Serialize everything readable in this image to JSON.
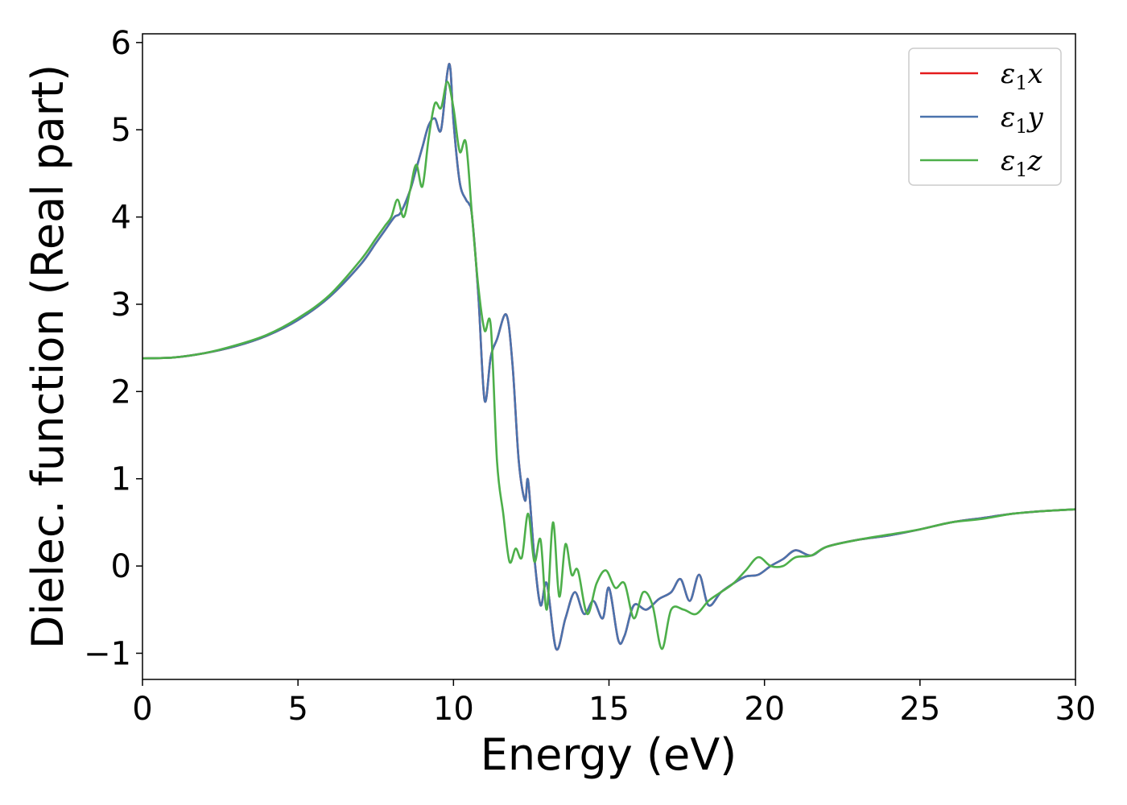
{
  "chart_data": {
    "type": "line",
    "title": "",
    "xlabel": "Energy (eV)",
    "ylabel": "Dielec. function (Real part)",
    "xlim": [
      0,
      30
    ],
    "ylim": [
      -1.3,
      6.1
    ],
    "xticks": [
      0,
      5,
      10,
      15,
      20,
      25,
      30
    ],
    "yticks": [
      -1,
      0,
      1,
      2,
      3,
      4,
      5,
      6
    ],
    "xtick_labels": [
      "0",
      "5",
      "10",
      "15",
      "20",
      "25",
      "30"
    ],
    "ytick_labels": [
      "−1",
      "0",
      "1",
      "2",
      "3",
      "4",
      "5",
      "6"
    ],
    "grid": false,
    "legend_position": "top-right",
    "series": [
      {
        "name": "x",
        "label_main": "ε",
        "label_sub": "1",
        "label_tail": "x",
        "color": "#e41a1c",
        "x": [
          0,
          1,
          2,
          3,
          4,
          5,
          6,
          7,
          7.5,
          7.8,
          8.1,
          8.3,
          8.6,
          8.8,
          9.0,
          9.2,
          9.4,
          9.6,
          9.8,
          9.9,
          10.0,
          10.2,
          10.4,
          10.5,
          10.6,
          10.8,
          11.0,
          11.2,
          11.4,
          11.7,
          11.9,
          12.1,
          12.3,
          12.4,
          12.6,
          12.8,
          13.0,
          13.3,
          13.6,
          13.9,
          14.2,
          14.5,
          14.8,
          15.0,
          15.3,
          15.5,
          15.8,
          16.2,
          16.6,
          17.0,
          17.3,
          17.6,
          17.9,
          18.2,
          18.6,
          19.0,
          19.4,
          19.8,
          20.2,
          20.6,
          21.0,
          21.5,
          22,
          23,
          24,
          25,
          26,
          27,
          28,
          29,
          30
        ],
        "y": [
          2.38,
          2.39,
          2.44,
          2.52,
          2.64,
          2.82,
          3.08,
          3.45,
          3.7,
          3.85,
          4.0,
          4.05,
          4.3,
          4.55,
          4.8,
          5.05,
          5.13,
          5.0,
          5.65,
          5.7,
          5.1,
          4.4,
          4.2,
          4.15,
          4.0,
          3.1,
          1.9,
          2.4,
          2.6,
          2.88,
          2.3,
          1.2,
          0.75,
          0.98,
          0.1,
          -0.45,
          -0.2,
          -0.95,
          -0.6,
          -0.3,
          -0.55,
          -0.4,
          -0.6,
          -0.25,
          -0.85,
          -0.8,
          -0.45,
          -0.5,
          -0.38,
          -0.3,
          -0.15,
          -0.4,
          -0.1,
          -0.45,
          -0.3,
          -0.2,
          -0.12,
          -0.1,
          0.0,
          0.08,
          0.18,
          0.12,
          0.22,
          0.3,
          0.35,
          0.42,
          0.5,
          0.55,
          0.6,
          0.63,
          0.65
        ]
      },
      {
        "name": "y",
        "label_main": "ε",
        "label_sub": "1",
        "label_tail": "y",
        "color": "#4a73ad",
        "x": [
          0,
          1,
          2,
          3,
          4,
          5,
          6,
          7,
          7.5,
          7.8,
          8.1,
          8.3,
          8.6,
          8.8,
          9.0,
          9.2,
          9.4,
          9.6,
          9.8,
          9.9,
          10.0,
          10.2,
          10.4,
          10.5,
          10.6,
          10.8,
          11.0,
          11.2,
          11.4,
          11.7,
          11.9,
          12.1,
          12.3,
          12.4,
          12.6,
          12.8,
          13.0,
          13.3,
          13.6,
          13.9,
          14.2,
          14.5,
          14.8,
          15.0,
          15.3,
          15.5,
          15.8,
          16.2,
          16.6,
          17.0,
          17.3,
          17.6,
          17.9,
          18.2,
          18.6,
          19.0,
          19.4,
          19.8,
          20.2,
          20.6,
          21.0,
          21.5,
          22,
          23,
          24,
          25,
          26,
          27,
          28,
          29,
          30
        ],
        "y": [
          2.38,
          2.39,
          2.44,
          2.52,
          2.64,
          2.82,
          3.08,
          3.45,
          3.7,
          3.85,
          4.0,
          4.05,
          4.3,
          4.55,
          4.8,
          5.05,
          5.13,
          5.0,
          5.65,
          5.7,
          5.1,
          4.4,
          4.2,
          4.15,
          4.0,
          3.1,
          1.9,
          2.4,
          2.6,
          2.88,
          2.3,
          1.2,
          0.75,
          0.98,
          0.1,
          -0.45,
          -0.2,
          -0.95,
          -0.6,
          -0.3,
          -0.55,
          -0.4,
          -0.6,
          -0.25,
          -0.85,
          -0.8,
          -0.45,
          -0.5,
          -0.38,
          -0.3,
          -0.15,
          -0.4,
          -0.1,
          -0.45,
          -0.3,
          -0.2,
          -0.12,
          -0.1,
          0.0,
          0.08,
          0.18,
          0.12,
          0.22,
          0.3,
          0.35,
          0.42,
          0.5,
          0.55,
          0.6,
          0.63,
          0.65
        ]
      },
      {
        "name": "z",
        "label_main": "ε",
        "label_sub": "1",
        "label_tail": "z",
        "color": "#4daf4a",
        "x": [
          0,
          1,
          2,
          3,
          4,
          5,
          6,
          7,
          7.5,
          7.8,
          8.0,
          8.2,
          8.4,
          8.6,
          8.8,
          9.0,
          9.2,
          9.4,
          9.6,
          9.8,
          10.0,
          10.2,
          10.4,
          10.6,
          10.8,
          11.0,
          11.2,
          11.4,
          11.6,
          11.8,
          12.0,
          12.2,
          12.4,
          12.6,
          12.8,
          13.0,
          13.2,
          13.4,
          13.6,
          13.8,
          14.0,
          14.3,
          14.6,
          14.9,
          15.2,
          15.5,
          15.8,
          16.1,
          16.4,
          16.7,
          17.0,
          17.4,
          17.8,
          18.2,
          18.6,
          19.0,
          19.4,
          19.8,
          20.2,
          20.6,
          21.0,
          21.5,
          22,
          23,
          24,
          25,
          26,
          27,
          28,
          29,
          30
        ],
        "y": [
          2.38,
          2.39,
          2.44,
          2.53,
          2.65,
          2.84,
          3.1,
          3.5,
          3.75,
          3.9,
          4.0,
          4.2,
          4.0,
          4.3,
          4.6,
          4.35,
          4.9,
          5.3,
          5.25,
          5.55,
          5.25,
          4.75,
          4.85,
          4.0,
          3.2,
          2.7,
          2.75,
          1.2,
          0.6,
          0.05,
          0.2,
          0.1,
          0.6,
          0.05,
          0.3,
          -0.5,
          0.5,
          -0.35,
          0.25,
          -0.1,
          -0.05,
          -0.55,
          -0.2,
          -0.05,
          -0.25,
          -0.2,
          -0.6,
          -0.3,
          -0.45,
          -0.95,
          -0.5,
          -0.5,
          -0.55,
          -0.4,
          -0.3,
          -0.2,
          -0.05,
          0.1,
          0.0,
          0.0,
          0.1,
          0.12,
          0.22,
          0.3,
          0.36,
          0.42,
          0.5,
          0.54,
          0.6,
          0.63,
          0.65
        ]
      }
    ]
  }
}
